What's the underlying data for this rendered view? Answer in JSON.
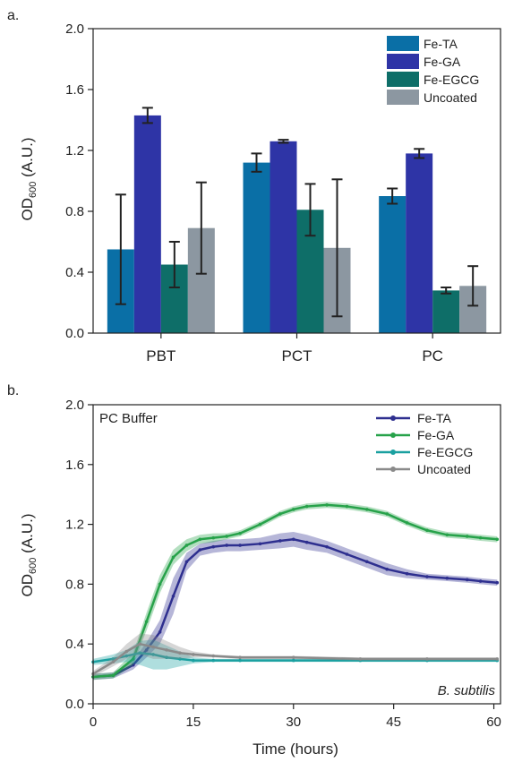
{
  "colors": {
    "fe_ta_bar": "#0a6fa6",
    "fe_ga_bar": "#2e34a6",
    "fe_egcg_bar": "#0e6e68",
    "uncoated_bar": "#8c97a1",
    "fe_ta_line": "#2e2f8f",
    "fe_ga_line": "#27a24a",
    "fe_egcg_line": "#1aa0a0",
    "uncoated_line": "#8a8a8a"
  },
  "chart_data": [
    {
      "type": "bar",
      "panel_label": "a.",
      "title": "",
      "xlabel": "",
      "ylabel_main": "OD",
      "ylabel_sub": "600",
      "ylabel_tail": " (A.U.)",
      "ylim": [
        0,
        2.0
      ],
      "yticks": [
        "0.0",
        "0.4",
        "0.8",
        "1.2",
        "1.6",
        "2.0"
      ],
      "legend_position": "top-right",
      "categories": [
        "PBT",
        "PCT",
        "PC"
      ],
      "series": [
        {
          "name": "Fe-TA",
          "color_key": "fe_ta_bar",
          "values": [
            0.55,
            1.12,
            0.9
          ],
          "errors": [
            0.36,
            0.06,
            0.05
          ]
        },
        {
          "name": "Fe-GA",
          "color_key": "fe_ga_bar",
          "values": [
            1.43,
            1.26,
            1.18
          ],
          "errors": [
            0.05,
            0.01,
            0.03
          ]
        },
        {
          "name": "Fe-EGCG",
          "color_key": "fe_egcg_bar",
          "values": [
            0.45,
            0.81,
            0.28
          ],
          "errors": [
            0.15,
            0.17,
            0.02
          ]
        },
        {
          "name": "Uncoated",
          "color_key": "uncoated_bar",
          "values": [
            0.69,
            0.56,
            0.31
          ],
          "errors": [
            0.3,
            0.45,
            0.13
          ]
        }
      ]
    },
    {
      "type": "line",
      "panel_label": "b.",
      "annotation": "PC Buffer",
      "corner_label": "B. subtilis",
      "xlabel": "Time (hours)",
      "ylabel_main": "OD",
      "ylabel_sub": "600",
      "ylabel_tail": " (A.U.)",
      "xlim": [
        0,
        61
      ],
      "ylim": [
        0,
        2.0
      ],
      "xticks": [
        "0",
        "15",
        "30",
        "45",
        "60"
      ],
      "yticks": [
        "0.0",
        "0.4",
        "0.8",
        "1.2",
        "1.6",
        "2.0"
      ],
      "legend_position": "top-right",
      "series": [
        {
          "name": "Fe-TA",
          "color_key": "fe_ta_line",
          "x": [
            0,
            3,
            6,
            8,
            10,
            12,
            14,
            16,
            18,
            20,
            22,
            25,
            28,
            30,
            32,
            35,
            38,
            41,
            44,
            47,
            50,
            53,
            56,
            58,
            60.5
          ],
          "y": [
            0.18,
            0.19,
            0.26,
            0.36,
            0.48,
            0.72,
            0.95,
            1.03,
            1.05,
            1.06,
            1.06,
            1.07,
            1.09,
            1.1,
            1.08,
            1.05,
            1.0,
            0.95,
            0.9,
            0.87,
            0.85,
            0.84,
            0.83,
            0.82,
            0.81
          ],
          "band": [
            0.02,
            0.02,
            0.03,
            0.05,
            0.08,
            0.12,
            0.06,
            0.04,
            0.04,
            0.04,
            0.04,
            0.04,
            0.05,
            0.05,
            0.05,
            0.04,
            0.04,
            0.04,
            0.04,
            0.03,
            0.02,
            0.02,
            0.02,
            0.02,
            0.02
          ]
        },
        {
          "name": "Fe-GA",
          "color_key": "fe_ga_line",
          "x": [
            0,
            3,
            6,
            8,
            10,
            12,
            14,
            16,
            18,
            20,
            22,
            25,
            28,
            30,
            32,
            35,
            38,
            41,
            44,
            47,
            50,
            53,
            56,
            58,
            60.5
          ],
          "y": [
            0.18,
            0.19,
            0.3,
            0.55,
            0.8,
            0.98,
            1.06,
            1.1,
            1.11,
            1.12,
            1.14,
            1.2,
            1.27,
            1.3,
            1.32,
            1.33,
            1.32,
            1.3,
            1.27,
            1.21,
            1.16,
            1.13,
            1.12,
            1.11,
            1.1
          ],
          "band": [
            0.02,
            0.02,
            0.04,
            0.06,
            0.06,
            0.05,
            0.04,
            0.03,
            0.03,
            0.02,
            0.02,
            0.02,
            0.02,
            0.02,
            0.02,
            0.02,
            0.02,
            0.02,
            0.02,
            0.02,
            0.02,
            0.02,
            0.02,
            0.02,
            0.02
          ]
        },
        {
          "name": "Fe-EGCG",
          "color_key": "fe_egcg_line",
          "x": [
            0,
            3,
            5,
            7,
            9,
            11,
            13,
            15,
            18,
            22,
            30,
            40,
            50,
            60.5
          ],
          "y": [
            0.28,
            0.3,
            0.32,
            0.34,
            0.33,
            0.31,
            0.3,
            0.29,
            0.29,
            0.29,
            0.29,
            0.29,
            0.29,
            0.29
          ],
          "band": [
            0.02,
            0.03,
            0.04,
            0.08,
            0.1,
            0.08,
            0.05,
            0.02,
            0.01,
            0.01,
            0.01,
            0.01,
            0.01,
            0.01
          ]
        },
        {
          "name": "Uncoated",
          "color_key": "uncoated_line",
          "x": [
            0,
            3,
            5,
            7,
            9,
            11,
            13,
            15,
            18,
            22,
            30,
            40,
            50,
            60.5
          ],
          "y": [
            0.2,
            0.28,
            0.35,
            0.4,
            0.38,
            0.36,
            0.34,
            0.33,
            0.32,
            0.31,
            0.31,
            0.3,
            0.3,
            0.3
          ],
          "band": [
            0.02,
            0.03,
            0.05,
            0.07,
            0.08,
            0.06,
            0.04,
            0.02,
            0.01,
            0.01,
            0.01,
            0.01,
            0.01,
            0.01
          ]
        }
      ]
    }
  ]
}
